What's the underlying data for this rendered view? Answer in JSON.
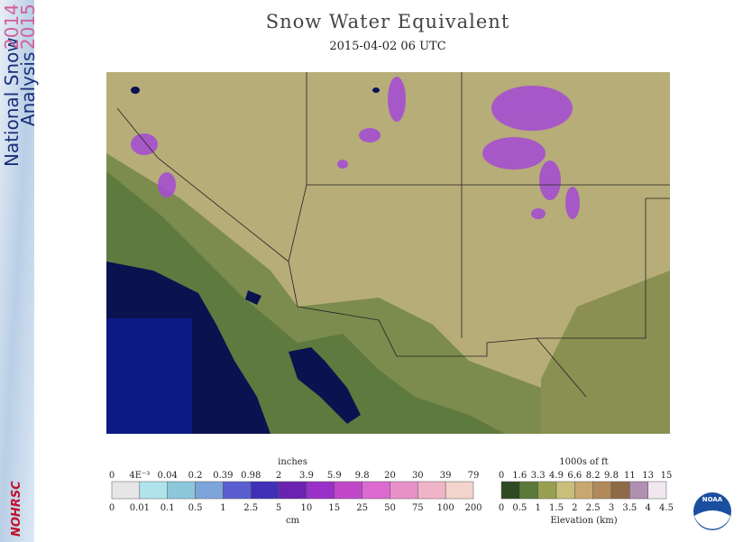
{
  "header": {
    "title": "Snow Water Equivalent",
    "subtitle": "2015-04-02 06 UTC"
  },
  "banner": {
    "line1": "National Snow",
    "line2": "Analysis",
    "year1": "2014",
    "year2": "2015",
    "logo": "NOHRSC"
  },
  "swe_legend": {
    "top_title": "inches",
    "bottom_title": "cm",
    "top_labels": [
      "0",
      "4E⁻³",
      "0.04",
      "0.2",
      "0.39",
      "0.98",
      "2",
      "3.9",
      "5.9",
      "9.8",
      "20",
      "30",
      "39",
      "79"
    ],
    "bottom_labels": [
      "0",
      "0.01",
      "0.1",
      "0.5",
      "1",
      "2.5",
      "5",
      "10",
      "15",
      "25",
      "50",
      "75",
      "100",
      "200"
    ]
  },
  "elevation_legend": {
    "top_title": "1000s of ft",
    "bottom_title": "Elevation (km)",
    "top_labels": [
      "0",
      "1.6",
      "3.3",
      "4.9",
      "6.6",
      "8.2",
      "9.8",
      "11",
      "13",
      "15"
    ],
    "bottom_labels": [
      "0",
      "0.5",
      "1",
      "1.5",
      "2",
      "2.5",
      "3",
      "3.5",
      "4",
      "4.5"
    ]
  },
  "noaa_logo": "NOAA"
}
